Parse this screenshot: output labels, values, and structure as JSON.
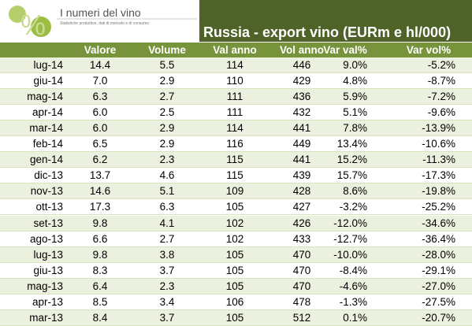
{
  "logo": {
    "title": "I numeri del vino",
    "subtitle": "Statistiche produttive, dati di mercato e di consumo"
  },
  "title": "Russia - export vino (EURm e hl/000)",
  "table": {
    "columns": [
      "Valore",
      "Volume",
      "Val anno",
      "Vol anno",
      "Var val%",
      "Var vol%"
    ],
    "rows": [
      [
        "lug-14",
        "14.4",
        "5.5",
        "114",
        "446",
        "9.0%",
        "-5.2%"
      ],
      [
        "giu-14",
        "7.0",
        "2.9",
        "110",
        "429",
        "4.8%",
        "-8.7%"
      ],
      [
        "mag-14",
        "6.3",
        "2.7",
        "111",
        "436",
        "5.9%",
        "-7.2%"
      ],
      [
        "apr-14",
        "6.0",
        "2.5",
        "111",
        "432",
        "5.1%",
        "-9.6%"
      ],
      [
        "mar-14",
        "6.0",
        "2.9",
        "114",
        "441",
        "7.8%",
        "-13.9%"
      ],
      [
        "feb-14",
        "6.5",
        "2.9",
        "116",
        "449",
        "13.4%",
        "-10.6%"
      ],
      [
        "gen-14",
        "6.2",
        "2.3",
        "115",
        "441",
        "15.2%",
        "-11.3%"
      ],
      [
        "dic-13",
        "13.7",
        "4.6",
        "115",
        "439",
        "15.7%",
        "-17.3%"
      ],
      [
        "nov-13",
        "14.6",
        "5.1",
        "109",
        "428",
        "8.6%",
        "-19.8%"
      ],
      [
        "ott-13",
        "17.3",
        "6.3",
        "105",
        "427",
        "-3.2%",
        "-25.2%"
      ],
      [
        "set-13",
        "9.8",
        "4.1",
        "102",
        "426",
        "-12.0%",
        "-34.6%"
      ],
      [
        "ago-13",
        "6.6",
        "2.7",
        "102",
        "433",
        "-12.7%",
        "-36.4%"
      ],
      [
        "lug-13",
        "9.8",
        "3.8",
        "105",
        "470",
        "-10.0%",
        "-28.0%"
      ],
      [
        "giu-13",
        "8.3",
        "3.7",
        "105",
        "470",
        "-8.4%",
        "-29.1%"
      ],
      [
        "mag-13",
        "6.4",
        "2.3",
        "105",
        "470",
        "-4.6%",
        "-27.0%"
      ],
      [
        "apr-13",
        "8.5",
        "3.4",
        "106",
        "478",
        "-1.3%",
        "-27.5%"
      ],
      [
        "mar-13",
        "8.4",
        "3.7",
        "105",
        "512",
        "0.1%",
        "-20.7%"
      ]
    ]
  }
}
